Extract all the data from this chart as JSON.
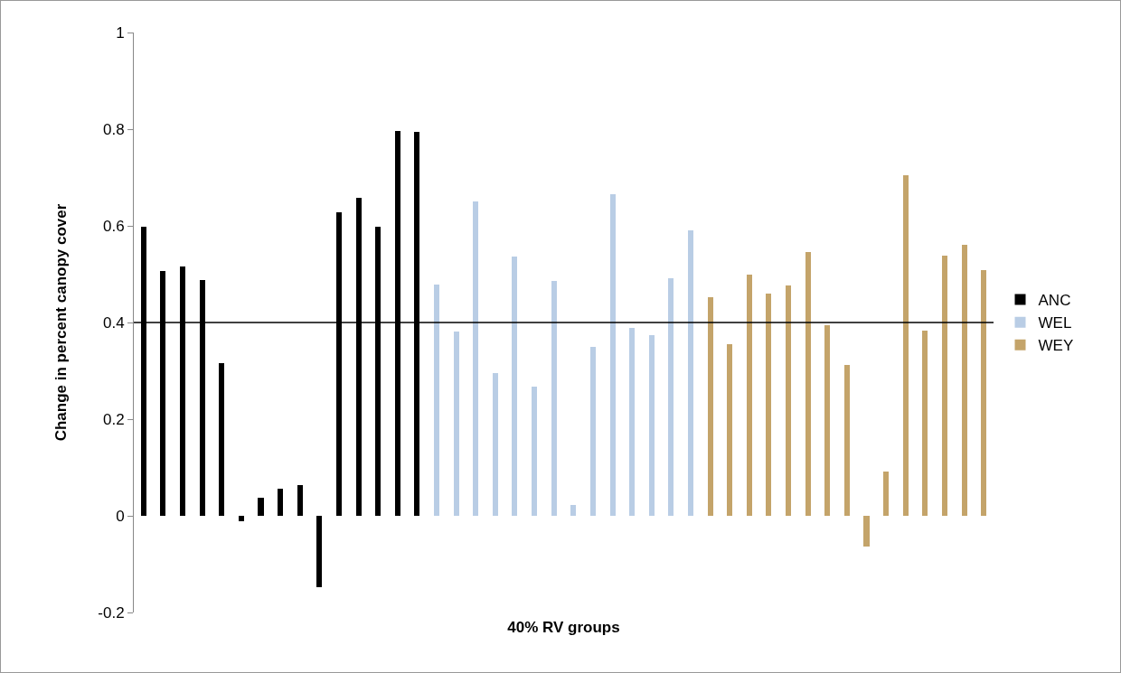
{
  "chart_data": {
    "type": "bar",
    "xlabel": "40% RV groups",
    "ylabel": "Change in percent canopy cover",
    "categories": [
      null,
      null,
      null,
      null,
      null,
      null,
      null,
      null,
      null,
      null,
      null,
      null,
      null,
      null,
      null,
      null,
      null,
      null,
      null,
      null,
      null,
      null,
      null,
      null,
      null,
      null,
      null,
      null,
      null,
      null,
      null,
      null,
      null,
      null,
      null,
      null,
      null,
      null,
      null,
      null,
      null,
      null,
      null,
      null
    ],
    "series": [
      {
        "name": "ANC",
        "color": "#000000",
        "values": [
          0.598,
          0.507,
          0.515,
          0.488,
          0.316,
          -0.012,
          0.037,
          0.057,
          0.064,
          -0.148,
          0.628,
          0.658,
          0.598,
          0.797,
          0.794,
          null,
          null,
          null,
          null,
          null,
          null,
          null,
          null,
          null,
          null,
          null,
          null,
          null,
          null,
          null,
          null,
          null,
          null,
          null,
          null,
          null,
          null,
          null,
          null,
          null,
          null,
          null,
          null,
          null
        ]
      },
      {
        "name": "WEL",
        "color": "#b9cde5",
        "values": [
          null,
          null,
          null,
          null,
          null,
          null,
          null,
          null,
          null,
          null,
          null,
          null,
          null,
          null,
          null,
          0.478,
          0.381,
          0.651,
          0.295,
          0.536,
          0.268,
          0.486,
          0.022,
          0.349,
          0.665,
          0.389,
          0.373,
          0.492,
          0.59,
          null,
          null,
          null,
          null,
          null,
          null,
          null,
          null,
          null,
          null,
          null,
          null,
          null,
          null,
          null
        ]
      },
      {
        "name": "WEY",
        "color": "#c4a46a",
        "values": [
          null,
          null,
          null,
          null,
          null,
          null,
          null,
          null,
          null,
          null,
          null,
          null,
          null,
          null,
          null,
          null,
          null,
          null,
          null,
          null,
          null,
          null,
          null,
          null,
          null,
          null,
          null,
          null,
          null,
          0.453,
          0.356,
          0.5,
          0.46,
          0.476,
          0.545,
          0.395,
          0.313,
          -0.063,
          0.092,
          0.705,
          0.383,
          0.538,
          0.561,
          0.509
        ]
      }
    ],
    "ylim": [
      -0.2,
      1
    ],
    "yticks": [
      -0.2,
      0,
      0.2,
      0.4,
      0.6,
      0.8,
      1
    ],
    "ref_lines": [
      {
        "axis": "y",
        "value": 0.4,
        "color": "#000000"
      }
    ],
    "grid": false,
    "legend": "right",
    "tick_labels": "y"
  }
}
